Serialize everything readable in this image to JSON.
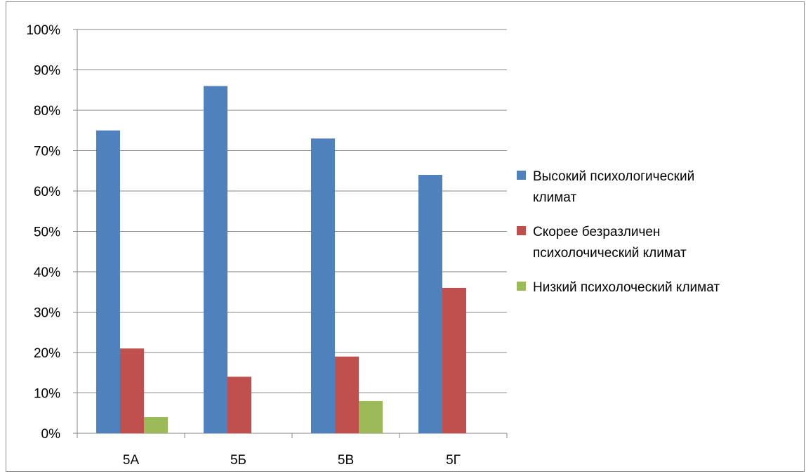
{
  "chart_data": {
    "type": "bar",
    "title": "",
    "xlabel": "",
    "ylabel": "",
    "categories": [
      "5А",
      "5Б",
      "5В",
      "5Г"
    ],
    "ylim": [
      0,
      100
    ],
    "y_ticks": [
      "0%",
      "10%",
      "20%",
      "30%",
      "40%",
      "50%",
      "60%",
      "70%",
      "80%",
      "90%",
      "100%"
    ],
    "grid": true,
    "legend_position": "right",
    "series": [
      {
        "name": "Высокий психологический климат",
        "legend_lines": [
          "Высокий психологический",
          "климат"
        ],
        "color": "#4f81bd",
        "values": [
          75,
          86,
          73,
          64
        ]
      },
      {
        "name": "Скорее безразличен психолочический климат",
        "legend_lines": [
          "Скорее безразличен",
          "психолочический климат"
        ],
        "color": "#c0504d",
        "values": [
          21,
          14,
          19,
          36
        ]
      },
      {
        "name": "Низкий психолоческий климат",
        "legend_lines": [
          "Низкий психолоческий климат"
        ],
        "color": "#9bbb59",
        "values": [
          4,
          0,
          8,
          0
        ]
      }
    ]
  }
}
